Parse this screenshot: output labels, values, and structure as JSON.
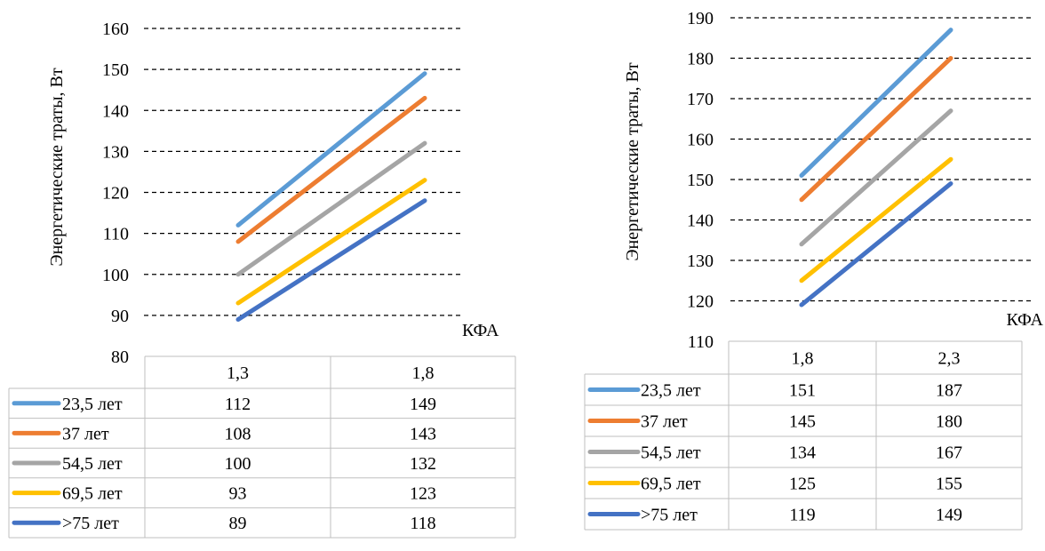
{
  "chart_data": [
    {
      "type": "line",
      "ylabel": "Энергетические траты, Вт",
      "xlabel": "КФА",
      "ylim": [
        80,
        160
      ],
      "y_ticks": [
        "80",
        "90",
        "100",
        "110",
        "120",
        "130",
        "140",
        "150",
        "160"
      ],
      "grid": true,
      "categories": [
        "1,3",
        "1,8"
      ],
      "series": [
        {
          "name": "23,5 лет",
          "values": [
            112,
            149
          ],
          "color": "#5B9BD5"
        },
        {
          "name": "37 лет",
          "values": [
            108,
            143
          ],
          "color": "#ED7D31"
        },
        {
          "name": "54,5 лет",
          "values": [
            100,
            132
          ],
          "color": "#A5A5A5"
        },
        {
          "name": "69,5 лет",
          "values": [
            93,
            123
          ],
          "color": "#FFC000"
        },
        {
          "name": ">75 лет",
          "values": [
            89,
            118
          ],
          "color": "#4472C4"
        }
      ],
      "value_labels": [
        [
          "112",
          "149"
        ],
        [
          "108",
          "143"
        ],
        [
          "100",
          "132"
        ],
        [
          "93",
          "123"
        ],
        [
          "89",
          "118"
        ]
      ]
    },
    {
      "type": "line",
      "ylabel": "Энергетические траты, Вт",
      "xlabel": "КФА",
      "ylim": [
        110,
        190
      ],
      "y_ticks": [
        "110",
        "120",
        "130",
        "140",
        "150",
        "160",
        "170",
        "180",
        "190"
      ],
      "grid": true,
      "categories": [
        "1,8",
        "2,3"
      ],
      "series": [
        {
          "name": "23,5 лет",
          "values": [
            151,
            187
          ],
          "color": "#5B9BD5"
        },
        {
          "name": "37 лет",
          "values": [
            145,
            180
          ],
          "color": "#ED7D31"
        },
        {
          "name": "54,5 лет",
          "values": [
            134,
            167
          ],
          "color": "#A5A5A5"
        },
        {
          "name": "69,5 лет",
          "values": [
            125,
            155
          ],
          "color": "#FFC000"
        },
        {
          "name": ">75 лет",
          "values": [
            119,
            149
          ],
          "color": "#4472C4"
        }
      ],
      "value_labels": [
        [
          "151",
          "187"
        ],
        [
          "145",
          "180"
        ],
        [
          "134",
          "167"
        ],
        [
          "125",
          "155"
        ],
        [
          "119",
          "149"
        ]
      ]
    }
  ]
}
